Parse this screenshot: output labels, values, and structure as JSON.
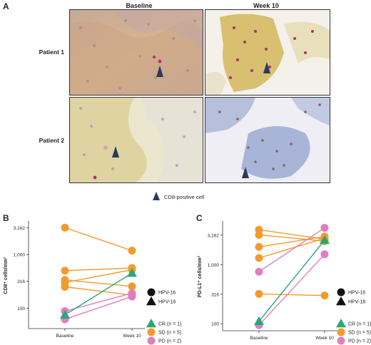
{
  "panelA": {
    "letter": "A",
    "col_baseline": "Baseline",
    "col_week10": "Week 10",
    "row1": "Patient 1",
    "row2": "Patient 2",
    "marker_caption": "CD8-positive cell",
    "colors": {
      "marker": "#2b3a5c",
      "stain_brown": "#c9a26a",
      "stain_yellow": "#e2cf7a",
      "nuclei_blue": "#7b8fc4",
      "nuclei_red": "#b0306a"
    }
  },
  "panelB": {
    "letter": "B"
  },
  "panelC": {
    "letter": "C"
  },
  "chart_data": [
    {
      "type": "line",
      "ylabel": "CD8⁺ cells/mm²",
      "x": [
        "Baseline",
        "Week 10"
      ],
      "y_scale": "log",
      "y_ticks": [
        "100",
        "316",
        "1,000",
        "3,162"
      ],
      "legend_shapes": [
        {
          "shape": "circle",
          "label": "HPV-16"
        },
        {
          "shape": "triangle",
          "label": "HPV-18"
        }
      ],
      "legend_response": [
        {
          "label": "CR (n = 1)",
          "color": "#2aa876"
        },
        {
          "label": "SD (n = 5)",
          "color": "#f39a2e"
        },
        {
          "label": "PD (n = 2)",
          "color": "#e07fc0"
        }
      ],
      "series": [
        {
          "response": "SD",
          "shape": "circle",
          "values": [
            3162,
            1180
          ]
        },
        {
          "response": "SD",
          "shape": "circle",
          "values": [
            500,
            560
          ]
        },
        {
          "response": "SD",
          "shape": "circle",
          "values": [
            335,
            255
          ]
        },
        {
          "response": "SD",
          "shape": "circle",
          "values": [
            300,
            520
          ]
        },
        {
          "response": "SD",
          "shape": "circle",
          "values": [
            250,
            175
          ]
        },
        {
          "response": "CR",
          "shape": "triangle",
          "values": [
            75,
            450
          ]
        },
        {
          "response": "PD",
          "shape": "circle",
          "values": [
            88,
            190
          ]
        },
        {
          "response": "PD",
          "shape": "circle",
          "values": [
            62,
            165
          ]
        }
      ]
    },
    {
      "type": "line",
      "ylabel": "PD-L1⁺ cells/mm²",
      "x": [
        "Baseline",
        "Week 10"
      ],
      "y_scale": "log",
      "y_ticks": [
        "100",
        "316",
        "1,000",
        "3,162"
      ],
      "legend_shapes": [
        {
          "shape": "circle",
          "label": "HPV-16"
        },
        {
          "shape": "triangle",
          "label": "HPV-18"
        }
      ],
      "legend_response": [
        {
          "label": "CR (n = 1)",
          "color": "#2aa876"
        },
        {
          "label": "SD (n = 5)",
          "color": "#f39a2e"
        },
        {
          "label": "PD (n = 2)",
          "color": "#e07fc0"
        }
      ],
      "series": [
        {
          "response": "SD",
          "shape": "circle",
          "values": [
            3900,
            2700
          ]
        },
        {
          "response": "SD",
          "shape": "circle",
          "values": [
            3200,
            2500
          ]
        },
        {
          "response": "SD",
          "shape": "circle",
          "values": [
            2000,
            3000
          ]
        },
        {
          "response": "SD",
          "shape": "circle",
          "values": [
            1300,
            2800
          ]
        },
        {
          "response": "SD",
          "shape": "circle",
          "values": [
            320,
            300
          ]
        },
        {
          "response": "CR",
          "shape": "triangle",
          "values": [
            110,
            2600
          ]
        },
        {
          "response": "PD",
          "shape": "circle",
          "values": [
            760,
            4200
          ]
        },
        {
          "response": "PD",
          "shape": "circle",
          "values": [
            95,
            1500
          ]
        }
      ]
    }
  ]
}
